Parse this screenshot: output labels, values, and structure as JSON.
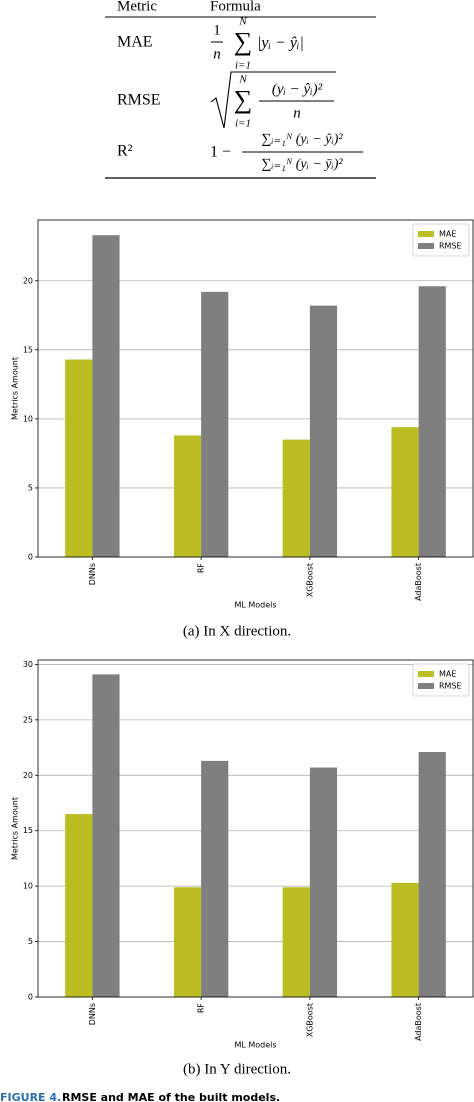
{
  "table": {
    "header": [
      "Metric",
      "Formula"
    ],
    "rows": [
      {
        "metric": "MAE",
        "formula": {
          "num": "1",
          "den": "n",
          "sum": "∑",
          "upper": "N",
          "lower": "i=1",
          "body": "|yᵢ − ŷᵢ|"
        }
      },
      {
        "metric": "RMSE",
        "formula": {
          "sum": "∑",
          "upper": "N",
          "lower": "i=1",
          "num": "(yᵢ − ŷᵢ)²",
          "den": "n"
        }
      },
      {
        "metric": "R²",
        "formula": {
          "lead": "1 −",
          "num": "∑ᵢ₌₁ᴺ (yᵢ − ŷᵢ)²",
          "den": "∑ᵢ₌₁ᴺ (yᵢ − ȳᵢ)²"
        }
      }
    ]
  },
  "chart_data": [
    {
      "type": "bar",
      "caption": "(a) In X direction.",
      "x_label": "ML Models",
      "y_label": "Metrics Amount",
      "categories": [
        "DNNs",
        "RF",
        "XGBoost",
        "AdaBoost"
      ],
      "series": [
        {
          "name": "MAE",
          "color": "#bcbd22",
          "values": [
            14.3,
            8.8,
            8.5,
            9.4
          ]
        },
        {
          "name": "RMSE",
          "color": "#7f7f7f",
          "values": [
            23.3,
            19.2,
            18.2,
            19.6
          ]
        }
      ],
      "ylim": [
        0,
        24.4
      ],
      "yticks": [
        0,
        5,
        10,
        15,
        20
      ],
      "grid": true,
      "legend": "upper right"
    },
    {
      "type": "bar",
      "caption": "(b) In Y direction.",
      "x_label": "ML Models",
      "y_label": "Metrics Amount",
      "categories": [
        "DNNs",
        "RF",
        "XGBoost",
        "AdaBoost"
      ],
      "series": [
        {
          "name": "MAE",
          "color": "#bcbd22",
          "values": [
            16.5,
            9.9,
            9.9,
            10.3
          ]
        },
        {
          "name": "RMSE",
          "color": "#7f7f7f",
          "values": [
            29.1,
            21.3,
            20.7,
            22.1
          ]
        }
      ],
      "ylim": [
        0,
        30.4
      ],
      "yticks": [
        0,
        5,
        10,
        15,
        20,
        25,
        30
      ],
      "grid": true,
      "legend": "upper right"
    }
  ],
  "figure_caption": {
    "label": "FIGURE 4.",
    "text": "RMSE and MAE of the built models."
  }
}
